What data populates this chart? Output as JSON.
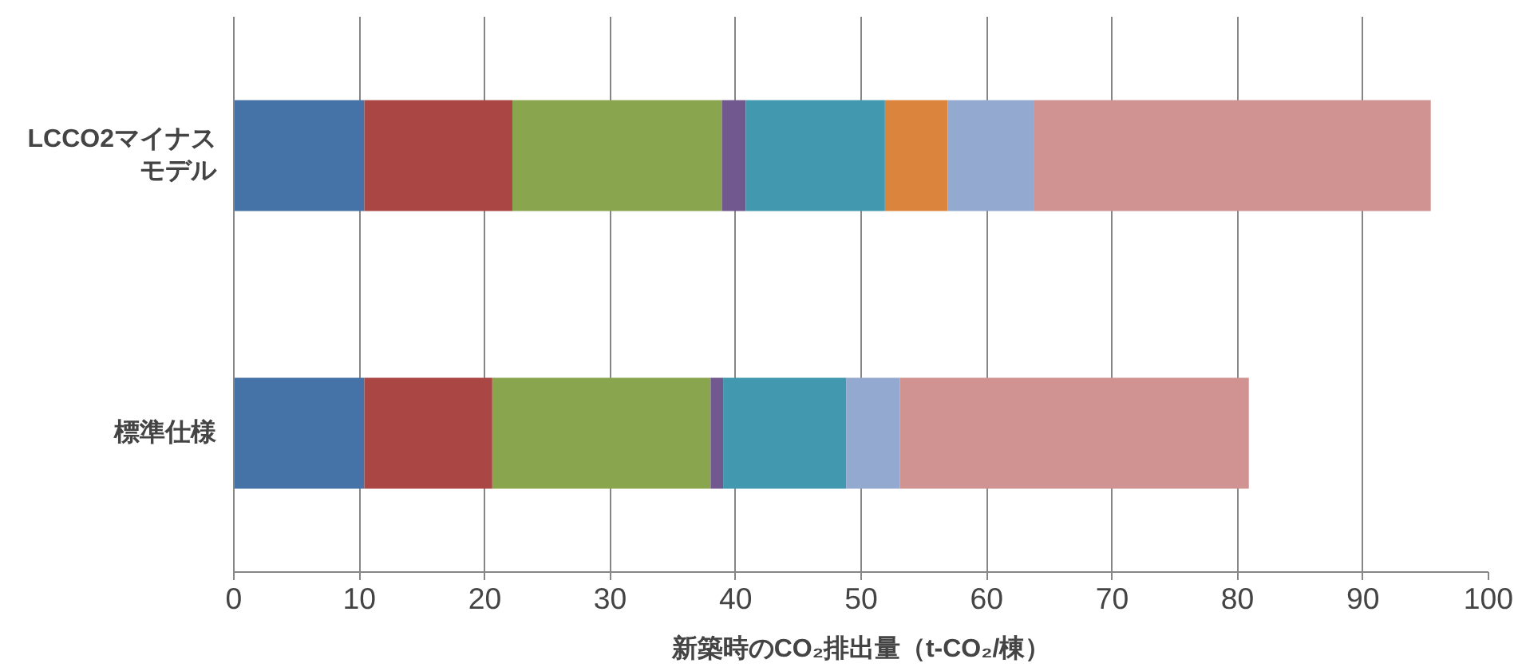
{
  "chart_data": {
    "type": "bar",
    "orientation": "horizontal",
    "stacked": true,
    "categories": [
      "LCCO2マイナスモデル",
      "標準仕様"
    ],
    "series": [
      {
        "color": "#4572a7",
        "values": [
          10.4,
          10.4
        ]
      },
      {
        "color": "#aa4643",
        "values": [
          11.8,
          10.2
        ]
      },
      {
        "color": "#89a54e",
        "values": [
          16.7,
          17.4
        ]
      },
      {
        "color": "#71588f",
        "values": [
          1.9,
          1.0
        ]
      },
      {
        "color": "#4198af",
        "values": [
          11.1,
          9.8
        ]
      },
      {
        "color": "#db843d",
        "values": [
          5.0,
          null
        ]
      },
      {
        "color": "#93a9cf",
        "values": [
          6.9,
          4.3
        ]
      },
      {
        "color": "#d19392",
        "values": [
          31.6,
          27.8
        ]
      }
    ],
    "xlim": [
      0,
      100
    ],
    "xticks": [
      0,
      10,
      20,
      30,
      40,
      50,
      60,
      70,
      80,
      90,
      100
    ],
    "xlabel": "新築時のCO₂排出量（t-CO₂/棟）",
    "grid": "x"
  }
}
